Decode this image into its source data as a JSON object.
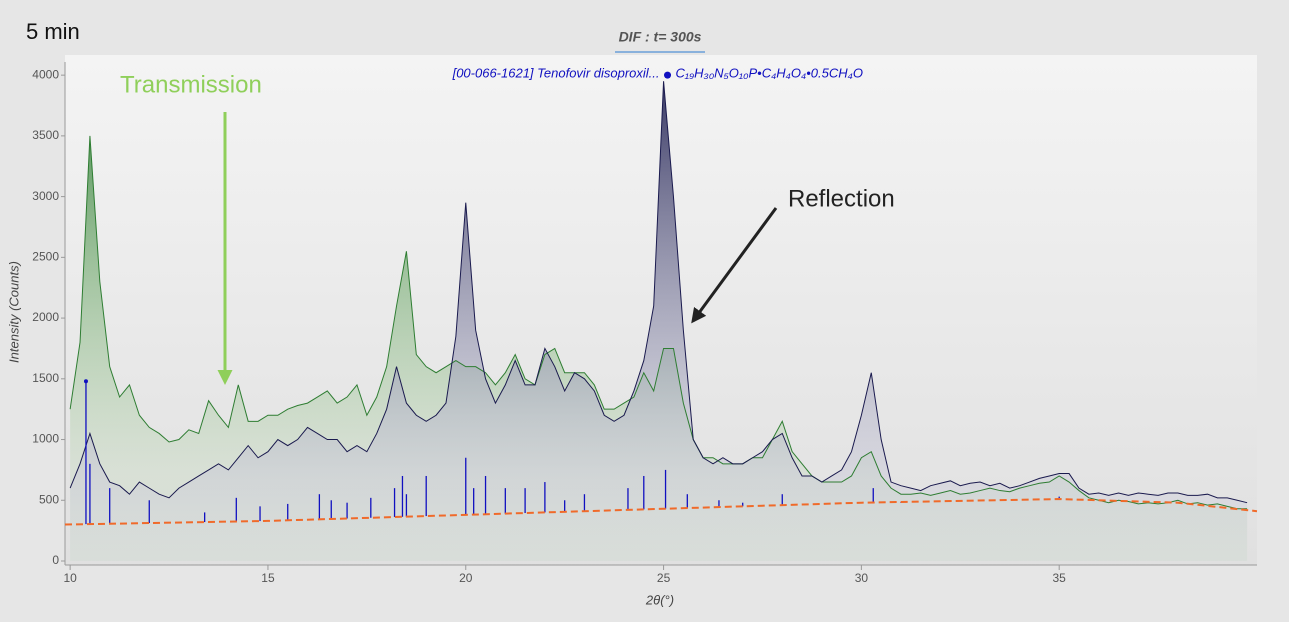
{
  "chart_data": {
    "type": "line",
    "corner_label": "5 min",
    "title": "DIF  : t=  300s",
    "x_label": "2θ(°)",
    "y_label": "Intensity (Counts)",
    "xlim": [
      9.87,
      40
    ],
    "ylim": [
      0,
      4100
    ],
    "xticks": [
      10,
      15,
      20,
      25,
      30,
      35
    ],
    "yticks": [
      0,
      500,
      1000,
      1500,
      2000,
      2500,
      3000,
      3500,
      4000
    ],
    "annotations": [
      {
        "text": "Transmission",
        "color": "#8fcf5a"
      },
      {
        "text": "Reflection",
        "color": "#222222"
      }
    ],
    "x": [
      10.0,
      10.25,
      10.5,
      10.75,
      11.0,
      11.25,
      11.5,
      11.75,
      12.0,
      12.25,
      12.5,
      12.75,
      13.0,
      13.25,
      13.5,
      13.75,
      14.0,
      14.25,
      14.5,
      14.75,
      15.0,
      15.25,
      15.5,
      15.75,
      16.0,
      16.25,
      16.5,
      16.75,
      17.0,
      17.25,
      17.5,
      17.75,
      18.0,
      18.25,
      18.5,
      18.75,
      19.0,
      19.25,
      19.5,
      19.75,
      20.0,
      20.25,
      20.5,
      20.75,
      21.0,
      21.25,
      21.5,
      21.75,
      22.0,
      22.25,
      22.5,
      22.75,
      23.0,
      23.25,
      23.5,
      23.75,
      24.0,
      24.25,
      24.5,
      24.75,
      25.0,
      25.25,
      25.5,
      25.75,
      26.0,
      26.25,
      26.5,
      26.75,
      27.0,
      27.25,
      27.5,
      27.75,
      28.0,
      28.25,
      28.5,
      28.75,
      29.0,
      29.25,
      29.5,
      29.75,
      30.0,
      30.25,
      30.5,
      30.75,
      31.0,
      31.25,
      31.5,
      31.75,
      32.0,
      32.25,
      32.5,
      32.75,
      33.0,
      33.25,
      33.5,
      33.75,
      34.0,
      34.25,
      34.5,
      34.75,
      35.0,
      35.25,
      35.5,
      35.75,
      36.0,
      36.25,
      36.5,
      36.75,
      37.0,
      37.25,
      37.5,
      37.75,
      38.0,
      38.25,
      38.5,
      38.75,
      39.0,
      39.25,
      39.5,
      39.75
    ],
    "series": [
      {
        "color": "#2e7d32",
        "values": [
          1250,
          1800,
          3500,
          2300,
          1600,
          1350,
          1450,
          1200,
          1100,
          1050,
          980,
          1000,
          1080,
          1050,
          1320,
          1200,
          1100,
          1450,
          1150,
          1150,
          1200,
          1200,
          1250,
          1280,
          1300,
          1350,
          1400,
          1300,
          1350,
          1450,
          1200,
          1350,
          1600,
          2100,
          2550,
          1700,
          1600,
          1550,
          1600,
          1650,
          1600,
          1600,
          1550,
          1450,
          1550,
          1700,
          1500,
          1450,
          1700,
          1750,
          1550,
          1550,
          1550,
          1450,
          1250,
          1250,
          1300,
          1350,
          1550,
          1400,
          1750,
          1750,
          1300,
          1000,
          850,
          850,
          800,
          800,
          800,
          850,
          850,
          1000,
          1150,
          900,
          800,
          700,
          650,
          650,
          650,
          700,
          850,
          900,
          700,
          600,
          550,
          550,
          560,
          540,
          560,
          580,
          550,
          560,
          580,
          600,
          580,
          570,
          600,
          620,
          640,
          650,
          700,
          650,
          580,
          520,
          500,
          480,
          500,
          490,
          470,
          480,
          470,
          480,
          500,
          470,
          480,
          460,
          470,
          450,
          430,
          430
        ]
      },
      {
        "color": "#1a1a4e",
        "values": [
          600,
          800,
          1050,
          800,
          650,
          620,
          550,
          650,
          600,
          550,
          520,
          600,
          650,
          700,
          750,
          800,
          750,
          850,
          950,
          850,
          900,
          1000,
          950,
          1000,
          1100,
          1050,
          1000,
          1000,
          900,
          950,
          900,
          1050,
          1250,
          1600,
          1300,
          1200,
          1150,
          1200,
          1300,
          1850,
          2950,
          1900,
          1500,
          1300,
          1450,
          1650,
          1450,
          1450,
          1750,
          1600,
          1400,
          1550,
          1500,
          1400,
          1200,
          1150,
          1200,
          1400,
          1650,
          2100,
          3950,
          3000,
          1900,
          1000,
          850,
          800,
          850,
          800,
          800,
          850,
          900,
          1000,
          1050,
          850,
          700,
          700,
          650,
          700,
          750,
          900,
          1200,
          1550,
          1000,
          650,
          620,
          600,
          580,
          620,
          640,
          660,
          620,
          640,
          650,
          620,
          640,
          600,
          620,
          650,
          680,
          700,
          720,
          720,
          600,
          550,
          560,
          540,
          560,
          540,
          560,
          550,
          540,
          560,
          560,
          540,
          540,
          550,
          520,
          520,
          500,
          480
        ]
      },
      {
        "color": "#f06a2a",
        "x": [
          9.87,
          15,
          20,
          25,
          30,
          35,
          38,
          40
        ],
        "values": [
          300,
          330,
          380,
          430,
          480,
          510,
          480,
          410
        ]
      }
    ],
    "reference": {
      "name": "[00-066-1621] Tenofovir disoproxil...",
      "formula": "C₁₉H₃₀N₅O₁₀P•C₄H₄O₄•0.5CH₄O",
      "color": "#1010c0",
      "peak_x": 25.1,
      "peak_value": 4000,
      "x": [
        10.4,
        10.5,
        11.0,
        12.0,
        13.4,
        14.2,
        14.8,
        15.5,
        16.3,
        16.6,
        17.0,
        17.6,
        18.2,
        18.4,
        18.5,
        19.0,
        20.0,
        20.2,
        20.5,
        21.0,
        21.5,
        22.0,
        22.5,
        23.0,
        24.1,
        24.5,
        25.05,
        25.6,
        26.4,
        27.0,
        28.0,
        30.3,
        31.0,
        33.0,
        35.0
      ],
      "values": [
        1480,
        800,
        600,
        500,
        400,
        520,
        450,
        470,
        550,
        500,
        480,
        520,
        600,
        700,
        550,
        700,
        850,
        600,
        700,
        600,
        600,
        650,
        500,
        550,
        600,
        700,
        750,
        550,
        500,
        480,
        550,
        600,
        480,
        500,
        530
      ]
    }
  }
}
